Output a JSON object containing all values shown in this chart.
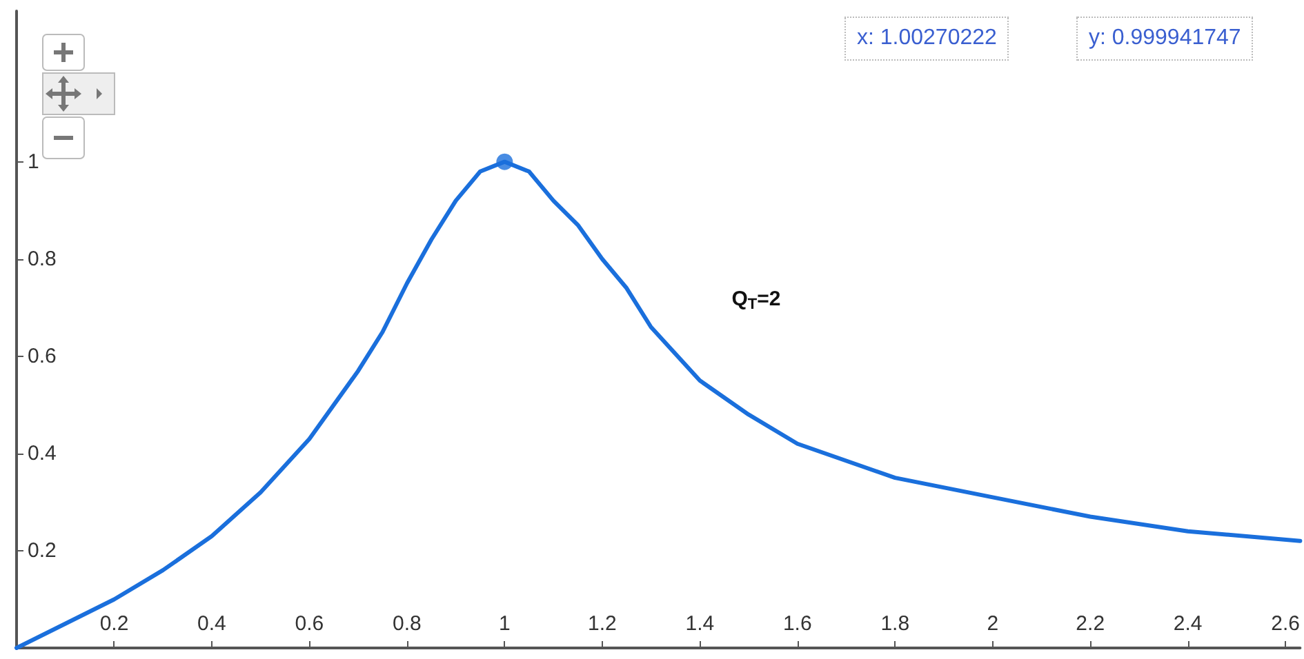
{
  "chart_data": {
    "type": "line",
    "xlim": [
      0,
      2.63
    ],
    "ylim": [
      0,
      1.31
    ],
    "xticks": [
      0.2,
      0.4,
      0.6,
      0.8,
      1,
      1.2,
      1.4,
      1.6,
      1.8,
      2,
      2.2,
      2.4,
      2.6
    ],
    "yticks": [
      0.2,
      0.4,
      0.6,
      0.8,
      1
    ],
    "grid": false,
    "line_style": "solid",
    "series": [
      {
        "color": "#1a6fdc",
        "marker": "none",
        "x": [
          0,
          0.1,
          0.2,
          0.3,
          0.4,
          0.5,
          0.6,
          0.7,
          0.75,
          0.8,
          0.85,
          0.9,
          0.95,
          1.0,
          1.05,
          1.1,
          1.15,
          1.2,
          1.25,
          1.3,
          1.4,
          1.5,
          1.6,
          1.8,
          2.0,
          2.2,
          2.4,
          2.63
        ],
        "values": [
          0,
          0.05,
          0.1,
          0.16,
          0.23,
          0.32,
          0.43,
          0.57,
          0.65,
          0.75,
          0.84,
          0.92,
          0.98,
          1.0,
          0.98,
          0.92,
          0.87,
          0.8,
          0.74,
          0.66,
          0.55,
          0.48,
          0.42,
          0.35,
          0.31,
          0.27,
          0.24,
          0.22
        ]
      },
      {
        "type": "scatter",
        "color": "#1a6fdc",
        "marker": "circle",
        "x": [
          1
        ],
        "values": [
          1
        ]
      }
    ],
    "annotations": [
      "Q$_{T}$=2",
      "x: 1.00270222",
      "y: 0.999941747"
    ]
  }
}
